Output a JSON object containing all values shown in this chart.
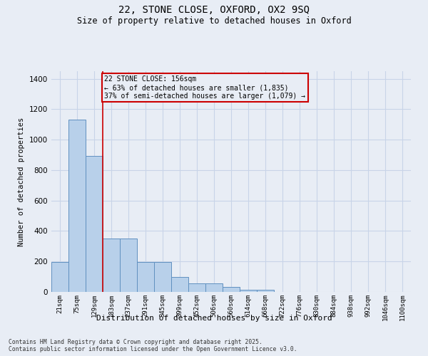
{
  "title_line1": "22, STONE CLOSE, OXFORD, OX2 9SQ",
  "title_line2": "Size of property relative to detached houses in Oxford",
  "xlabel": "Distribution of detached houses by size in Oxford",
  "ylabel": "Number of detached properties",
  "categories": [
    "21sqm",
    "75sqm",
    "129sqm",
    "183sqm",
    "237sqm",
    "291sqm",
    "345sqm",
    "399sqm",
    "452sqm",
    "506sqm",
    "560sqm",
    "614sqm",
    "668sqm",
    "722sqm",
    "776sqm",
    "830sqm",
    "884sqm",
    "938sqm",
    "992sqm",
    "1046sqm",
    "1100sqm"
  ],
  "values": [
    195,
    1130,
    895,
    350,
    350,
    195,
    195,
    100,
    55,
    55,
    35,
    15,
    15,
    0,
    0,
    0,
    0,
    0,
    0,
    0,
    0
  ],
  "bar_color": "#b8d0ea",
  "bar_edge_color": "#6090c0",
  "grid_color": "#c8d4e8",
  "bg_color": "#e8edf5",
  "vline_x": 2.5,
  "vline_color": "#cc0000",
  "annotation_text": "22 STONE CLOSE: 156sqm\n← 63% of detached houses are smaller (1,835)\n37% of semi-detached houses are larger (1,079) →",
  "annotation_box_color": "#cc0000",
  "ylim": [
    0,
    1450
  ],
  "yticks": [
    0,
    200,
    400,
    600,
    800,
    1000,
    1200,
    1400
  ],
  "footer_line1": "Contains HM Land Registry data © Crown copyright and database right 2025.",
  "footer_line2": "Contains public sector information licensed under the Open Government Licence v3.0."
}
